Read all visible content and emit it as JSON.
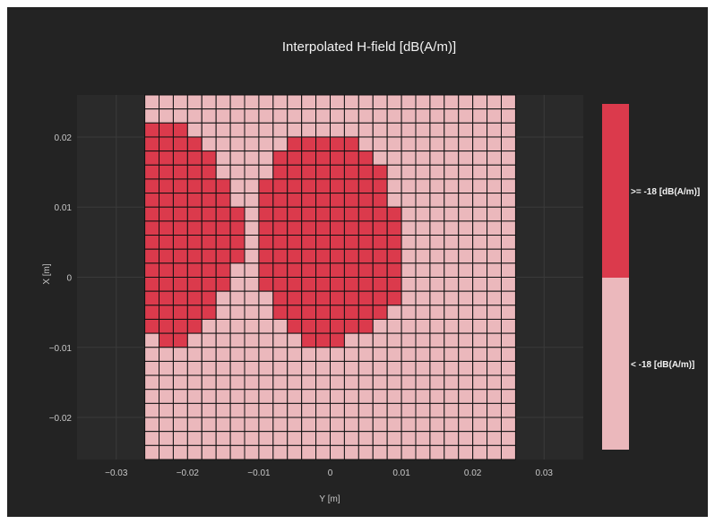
{
  "chart_data": {
    "type": "heatmap",
    "title": "Interpolated H-field [dB(A/m)]",
    "xlabel": "Y [m]",
    "ylabel": "X [m]",
    "xlim": [
      -0.0355,
      0.0355
    ],
    "ylim": [
      -0.026,
      0.026
    ],
    "x_ticks": [
      -0.03,
      -0.02,
      -0.01,
      0,
      0.01,
      0.02,
      0.03
    ],
    "x_tick_labels": [
      "−0.03",
      "−0.02",
      "−0.01",
      "0",
      "0.01",
      "0.02",
      "0.03"
    ],
    "y_ticks": [
      -0.02,
      -0.01,
      0,
      0.01,
      0.02
    ],
    "y_tick_labels": [
      "−0.02",
      "−0.01",
      "0",
      "0.01",
      "0.02"
    ],
    "grid": true,
    "grid_x_range": [
      -0.026,
      0.026
    ],
    "grid_y_range": [
      -0.026,
      0.026
    ],
    "grid_columns": 26,
    "grid_rows": 26,
    "cell_size": 0.002,
    "threshold_db": -18,
    "regions": [
      {
        "name": "left_lobe",
        "rows_from_top": [
          {
            "row": 2,
            "cols": [
              0,
              2
            ]
          },
          {
            "row": 3,
            "cols": [
              0,
              3
            ]
          },
          {
            "row": 4,
            "cols": [
              0,
              4
            ]
          },
          {
            "row": 5,
            "cols": [
              0,
              4
            ]
          },
          {
            "row": 6,
            "cols": [
              0,
              5
            ]
          },
          {
            "row": 7,
            "cols": [
              0,
              5
            ]
          },
          {
            "row": 8,
            "cols": [
              0,
              6
            ]
          },
          {
            "row": 9,
            "cols": [
              0,
              6
            ]
          },
          {
            "row": 10,
            "cols": [
              0,
              6
            ]
          },
          {
            "row": 11,
            "cols": [
              0,
              6
            ]
          },
          {
            "row": 12,
            "cols": [
              0,
              5
            ]
          },
          {
            "row": 13,
            "cols": [
              0,
              5
            ]
          },
          {
            "row": 14,
            "cols": [
              0,
              4
            ]
          },
          {
            "row": 15,
            "cols": [
              0,
              4
            ]
          },
          {
            "row": 16,
            "cols": [
              0,
              3
            ]
          },
          {
            "row": 17,
            "cols": [
              1,
              2
            ]
          }
        ]
      },
      {
        "name": "right_lobe",
        "rows_from_top": [
          {
            "row": 3,
            "cols": [
              10,
              14
            ]
          },
          {
            "row": 4,
            "cols": [
              9,
              15
            ]
          },
          {
            "row": 5,
            "cols": [
              9,
              16
            ]
          },
          {
            "row": 6,
            "cols": [
              8,
              16
            ]
          },
          {
            "row": 7,
            "cols": [
              8,
              16
            ]
          },
          {
            "row": 8,
            "cols": [
              8,
              17
            ]
          },
          {
            "row": 9,
            "cols": [
              8,
              17
            ]
          },
          {
            "row": 10,
            "cols": [
              8,
              17
            ]
          },
          {
            "row": 11,
            "cols": [
              8,
              17
            ]
          },
          {
            "row": 12,
            "cols": [
              8,
              17
            ]
          },
          {
            "row": 13,
            "cols": [
              8,
              17
            ]
          },
          {
            "row": 14,
            "cols": [
              9,
              17
            ]
          },
          {
            "row": 15,
            "cols": [
              9,
              16
            ]
          },
          {
            "row": 16,
            "cols": [
              10,
              15
            ]
          },
          {
            "row": 17,
            "cols": [
              11,
              13
            ]
          }
        ]
      }
    ],
    "legend": {
      "placement": "right",
      "entries": [
        {
          "label": ">= -18 [dB(A/m)]",
          "color": "#db3a4c"
        },
        {
          "label": "< -18 [dB(A/m)]",
          "color": "#ebb8bc"
        }
      ]
    }
  },
  "colors": {
    "background": "#232323",
    "plot_background": "#2a2a2a",
    "grid": "#3a3a3a",
    "cell_border": "#111111",
    "high": "#db3a4c",
    "low": "#ebb8bc"
  }
}
